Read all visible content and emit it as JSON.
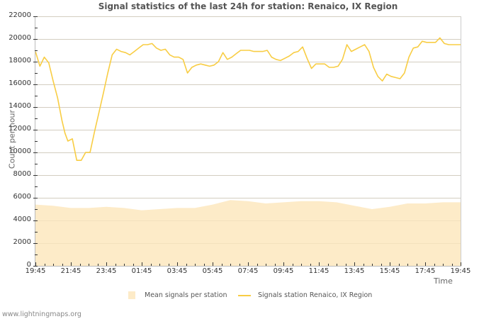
{
  "chart_data": {
    "type": "line",
    "title": "Signal statistics of the last 24h for station: Renaico, IX Region",
    "xlabel": "Time",
    "ylabel": "Count per hour",
    "ylim": [
      0,
      22000
    ],
    "yticks": [
      0,
      2000,
      4000,
      6000,
      8000,
      10000,
      12000,
      14000,
      16000,
      18000,
      20000,
      22000
    ],
    "xticks": [
      "19:45",
      "21:45",
      "23:45",
      "01:45",
      "03:45",
      "05:45",
      "07:45",
      "09:45",
      "11:45",
      "13:45",
      "15:45",
      "17:45",
      "19:45"
    ],
    "grid": true,
    "legend_position": "bottom",
    "series": [
      {
        "name": "Mean signals per station",
        "kind": "area",
        "color": "#fdebc8",
        "x_minutes_from_start": [
          0,
          60,
          120,
          180,
          240,
          300,
          360,
          420,
          480,
          540,
          600,
          660,
          720,
          780,
          840,
          900,
          960,
          1020,
          1080,
          1140,
          1200,
          1260,
          1320,
          1380,
          1440
        ],
        "values": [
          5400,
          5300,
          5100,
          5100,
          5200,
          5100,
          4900,
          5000,
          5100,
          5100,
          5400,
          5800,
          5700,
          5500,
          5600,
          5700,
          5700,
          5600,
          5300,
          5000,
          5200,
          5500,
          5500,
          5600,
          5600
        ]
      },
      {
        "name": "Signals station Renaico, IX Region",
        "kind": "line",
        "color": "#f8cd44",
        "x_minutes_from_start": [
          0,
          15,
          30,
          45,
          60,
          75,
          90,
          100,
          110,
          125,
          140,
          155,
          170,
          185,
          200,
          215,
          230,
          245,
          260,
          275,
          290,
          305,
          320,
          335,
          350,
          365,
          380,
          395,
          410,
          425,
          440,
          455,
          470,
          485,
          500,
          515,
          530,
          545,
          560,
          575,
          590,
          605,
          620,
          635,
          650,
          665,
          680,
          695,
          710,
          725,
          740,
          755,
          770,
          785,
          800,
          815,
          830,
          845,
          860,
          875,
          890,
          905,
          920,
          935,
          950,
          965,
          980,
          995,
          1010,
          1025,
          1040,
          1055,
          1070,
          1085,
          1100,
          1115,
          1130,
          1145,
          1160,
          1175,
          1190,
          1205,
          1220,
          1235,
          1250,
          1265,
          1280,
          1295,
          1310,
          1325,
          1340,
          1355,
          1370,
          1385,
          1400,
          1415,
          1430,
          1440
        ],
        "values": [
          18900,
          17600,
          18400,
          17900,
          16300,
          14800,
          12800,
          11700,
          11000,
          11200,
          9300,
          9300,
          10000,
          10000,
          11800,
          13500,
          15200,
          17000,
          18600,
          19100,
          18900,
          18800,
          18600,
          18900,
          19200,
          19500,
          19500,
          19600,
          19200,
          19000,
          19100,
          18600,
          18400,
          18400,
          18200,
          17000,
          17500,
          17700,
          17800,
          17700,
          17600,
          17700,
          18000,
          18800,
          18200,
          18400,
          18700,
          19000,
          19000,
          19000,
          18900,
          18900,
          18900,
          19000,
          18400,
          18200,
          18100,
          18300,
          18500,
          18800,
          18900,
          19300,
          18300,
          17400,
          17800,
          17800,
          17800,
          17500,
          17500,
          17600,
          18200,
          19500,
          18900,
          19100,
          19300,
          19500,
          18900,
          17500,
          16700,
          16300,
          16900,
          16700,
          16600,
          16500,
          17000,
          18400,
          19200,
          19300,
          19800,
          19700,
          19700,
          19700,
          20100,
          19600,
          19500,
          19500,
          19500,
          19500
        ]
      }
    ]
  },
  "footer": {
    "source": "www.lightningmaps.org"
  }
}
